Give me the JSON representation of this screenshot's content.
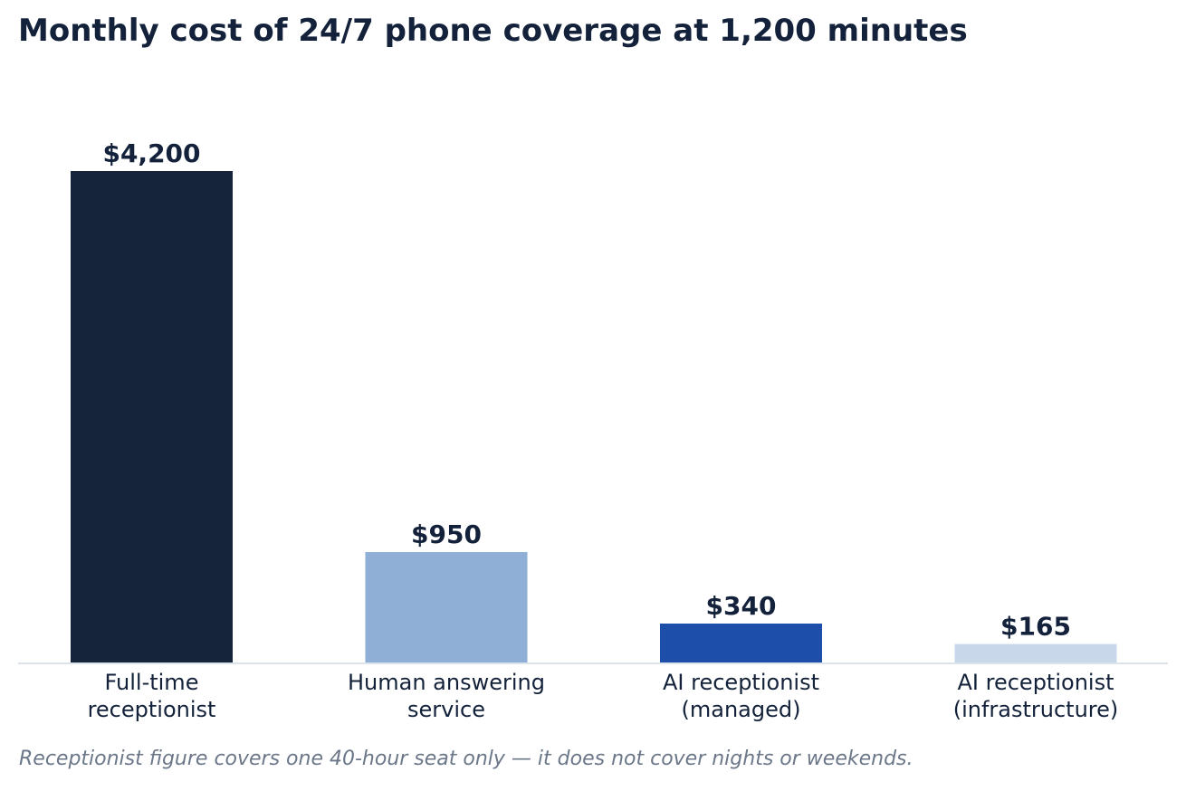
{
  "chart_data": {
    "type": "bar",
    "title": "Monthly cost of 24/7 phone coverage at 1,200 minutes",
    "xlabel": "",
    "ylabel": "",
    "categories": [
      [
        "Full-time",
        "receptionist"
      ],
      [
        "Human answering",
        "service"
      ],
      [
        "AI receptionist",
        "(managed)"
      ],
      [
        "AI receptionist",
        "(infrastructure)"
      ]
    ],
    "values": [
      4200,
      950,
      340,
      165
    ],
    "value_labels": [
      "$4,200",
      "$950",
      "$340",
      "$165"
    ],
    "colors": [
      "#15243b",
      "#8fafd6",
      "#1d4faa",
      "#c8d8ea"
    ],
    "ylim": [
      0,
      4200
    ],
    "grid": false,
    "legend": "none",
    "footnote": "Receptionist figure covers one 40-hour seat only — it does not cover nights or weekends."
  }
}
